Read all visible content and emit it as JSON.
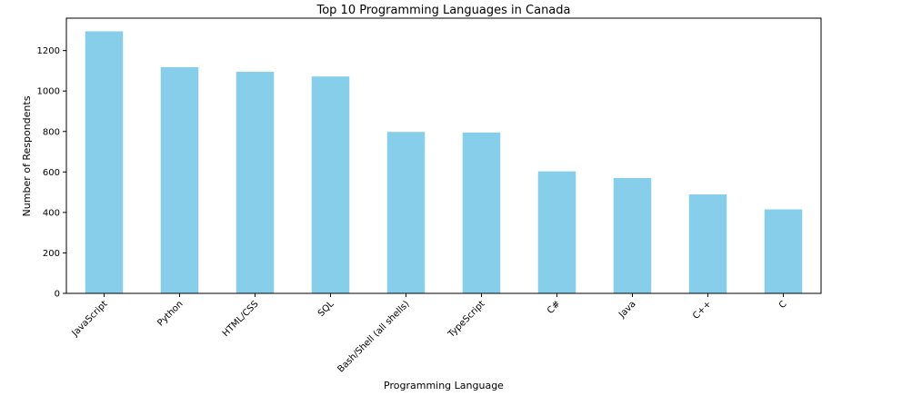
{
  "chart_data": {
    "type": "bar",
    "title": "Top 10 Programming Languages in Canada",
    "xlabel": "Programming Language",
    "ylabel": "Number of Respondents",
    "categories": [
      "JavaScript",
      "Python",
      "HTML/CSS",
      "SQL",
      "Bash/Shell (all shells)",
      "TypeScript",
      "C#",
      "Java",
      "C++",
      "C"
    ],
    "values": [
      1295,
      1118,
      1095,
      1072,
      798,
      795,
      603,
      570,
      489,
      415
    ],
    "ylim": [
      0,
      1360
    ],
    "yticks": [
      0,
      200,
      400,
      600,
      800,
      1000,
      1200
    ],
    "grid": false,
    "legend": "none",
    "colors": {
      "bar": "#87CEEB",
      "axis": "#000000",
      "background": "#ffffff"
    }
  }
}
